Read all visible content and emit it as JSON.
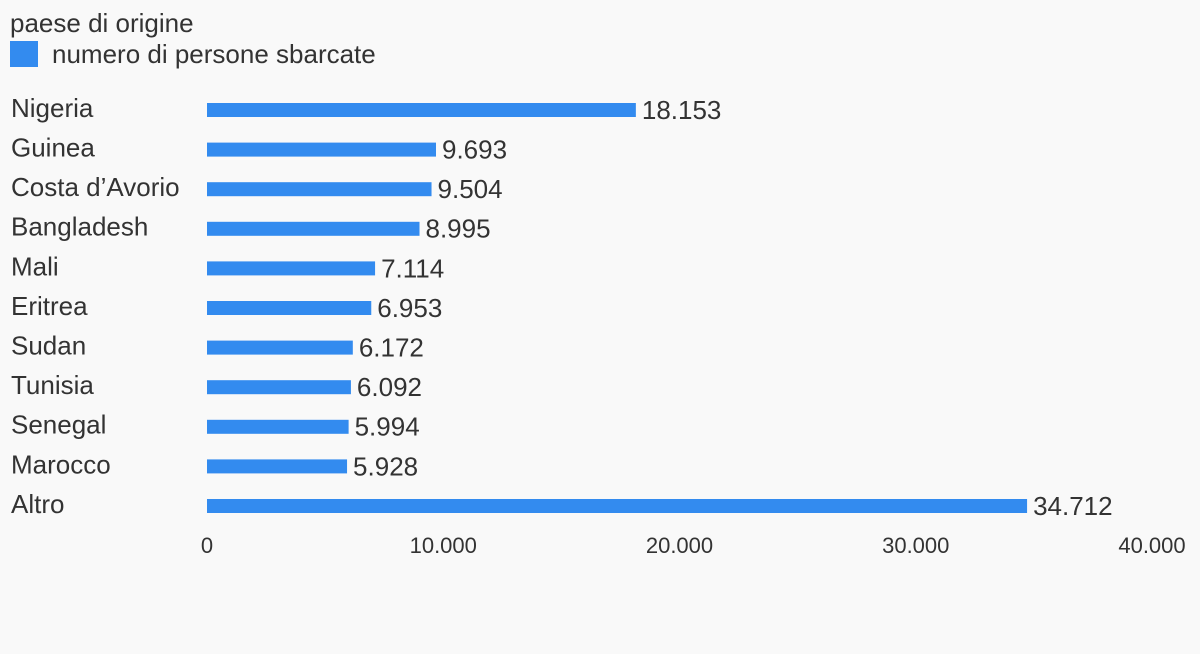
{
  "header": {
    "title": "paese di origine"
  },
  "legend": {
    "label": "numero di persone sbarcate",
    "color": "#338bef"
  },
  "chart_data": {
    "type": "bar",
    "orientation": "horizontal",
    "categories": [
      "Nigeria",
      "Guinea",
      "Costa d’Avorio",
      "Bangladesh",
      "Mali",
      "Eritrea",
      "Sudan",
      "Tunisia",
      "Senegal",
      "Marocco",
      "Altro"
    ],
    "series": [
      {
        "name": "numero di persone sbarcate",
        "values": [
          18153,
          9693,
          9504,
          8995,
          7114,
          6953,
          6172,
          6092,
          5994,
          5928,
          34712
        ],
        "labels": [
          "18.153",
          "9.693",
          "9.504",
          "8.995",
          "7.114",
          "6.953",
          "6.172",
          "6.092",
          "5.994",
          "5.928",
          "34.712"
        ]
      }
    ],
    "xlim": [
      0,
      40000
    ],
    "xticks": [
      0,
      10000,
      20000,
      30000,
      40000
    ],
    "xtick_labels": [
      "0",
      "10.000",
      "20.000",
      "30.000",
      "40.000"
    ],
    "grid": false,
    "legend_position": "top-left",
    "bar_color": "#338bef"
  }
}
